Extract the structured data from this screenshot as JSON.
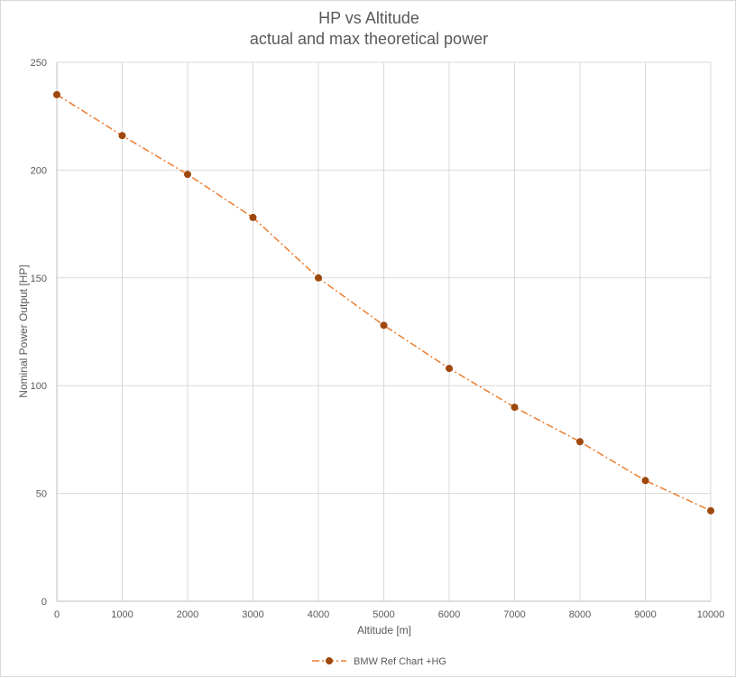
{
  "chart_data": {
    "type": "line",
    "title": "HP vs Altitude",
    "subtitle": "actual and max theoretical power",
    "xlabel": "Altitude [m]",
    "ylabel": "Nominal Power Output [HP]",
    "xlim": [
      0,
      10000
    ],
    "ylim": [
      0,
      250
    ],
    "x_ticks": [
      0,
      1000,
      2000,
      3000,
      4000,
      5000,
      6000,
      7000,
      8000,
      9000,
      10000
    ],
    "y_ticks": [
      0,
      50,
      100,
      150,
      200,
      250
    ],
    "grid": true,
    "legend_position": "bottom",
    "series": [
      {
        "name": "BMW Ref Chart +HG",
        "color": "#ed7d31",
        "marker_color": "#9e480e",
        "line_style": "dash-dot",
        "x": [
          0,
          1000,
          2000,
          3000,
          4000,
          5000,
          6000,
          7000,
          8000,
          9000,
          10000
        ],
        "y": [
          235,
          216,
          198,
          178,
          150,
          128,
          108,
          90,
          74,
          56,
          42
        ]
      }
    ]
  }
}
